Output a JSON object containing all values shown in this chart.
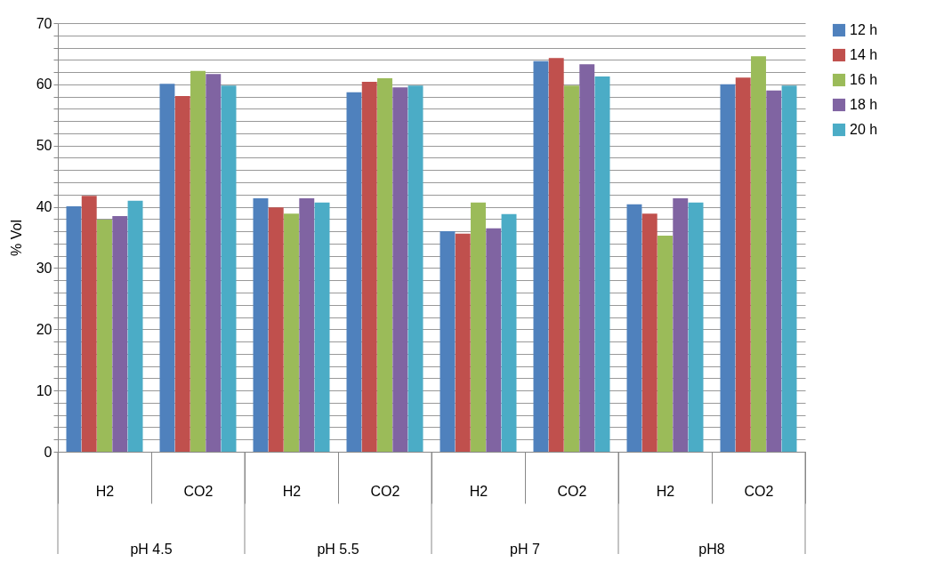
{
  "chart_data": {
    "type": "bar",
    "ylabel": "% Vol",
    "categories": [
      "H2",
      "CO2",
      "H2",
      "CO2",
      "H2",
      "CO2",
      "H2",
      "CO2"
    ],
    "annotations": [
      "pH 4.5",
      "pH 5.5",
      "pH 7",
      "pH8"
    ],
    "series": [
      {
        "name": "12 h",
        "color": "#4f81bd",
        "values": [
          40.1,
          60.1,
          41.4,
          58.7,
          36.0,
          63.8,
          40.4,
          60.0
        ]
      },
      {
        "name": "14 h",
        "color": "#c0504d",
        "values": [
          41.8,
          58.1,
          39.9,
          60.4,
          35.6,
          64.3,
          38.9,
          61.1
        ]
      },
      {
        "name": "16 h",
        "color": "#9bbb59",
        "values": [
          37.9,
          62.2,
          38.9,
          61.0,
          40.7,
          59.8,
          35.3,
          64.6
        ]
      },
      {
        "name": "18 h",
        "color": "#8064a2",
        "values": [
          38.5,
          61.7,
          41.4,
          59.5,
          36.5,
          63.3,
          41.4,
          59.0
        ]
      },
      {
        "name": "20 h",
        "color": "#4bacc6",
        "values": [
          41.0,
          59.8,
          40.7,
          59.8,
          38.8,
          61.3,
          40.7,
          59.8
        ]
      }
    ],
    "ylim": [
      0,
      70
    ],
    "yticks": [
      0,
      {
        "value": 2,
        "label": null
      },
      {
        "value": 4,
        "label": null
      },
      {
        "value": 6,
        "label": null
      },
      {
        "value": 8,
        "label": null
      },
      10,
      {
        "value": 12,
        "label": null
      },
      {
        "value": 14,
        "label": null
      },
      {
        "value": 16,
        "label": null
      },
      {
        "value": 18,
        "label": null
      },
      20,
      {
        "value": 22,
        "label": null
      },
      {
        "value": 24,
        "label": null
      },
      {
        "value": 26,
        "label": null
      },
      {
        "value": 28,
        "label": null
      },
      30,
      {
        "value": 32,
        "label": null
      },
      {
        "value": 34,
        "label": null
      },
      {
        "value": 36,
        "label": null
      },
      {
        "value": 38,
        "label": null
      },
      40,
      {
        "value": 42,
        "label": null
      },
      {
        "value": 44,
        "label": null
      },
      {
        "value": 46,
        "label": null
      },
      {
        "value": 48,
        "label": null
      },
      50,
      {
        "value": 52,
        "label": null
      },
      {
        "value": 54,
        "label": null
      },
      {
        "value": 56,
        "label": null
      },
      {
        "value": 58,
        "label": null
      },
      60,
      {
        "value": 62,
        "label": null
      },
      {
        "value": 64,
        "label": null
      },
      {
        "value": 66,
        "label": null
      },
      {
        "value": 68,
        "label": null
      },
      70
    ],
    "grid": "y",
    "legend": "right"
  }
}
